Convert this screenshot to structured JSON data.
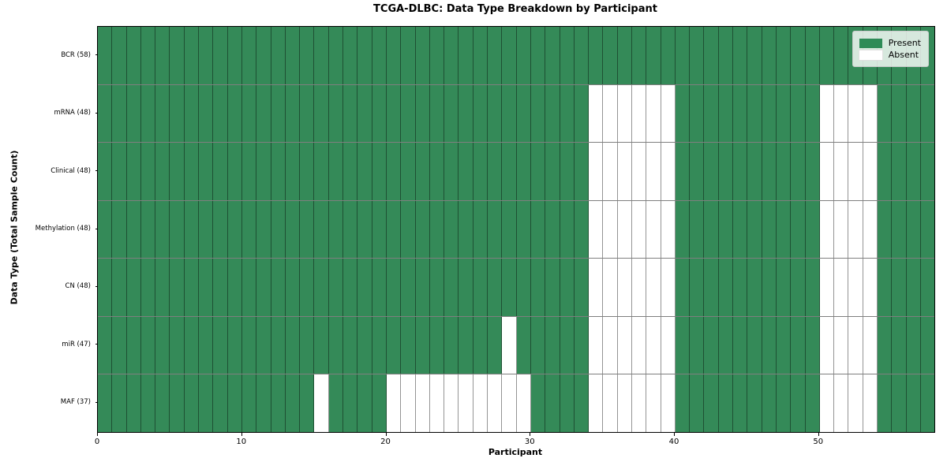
{
  "chart_data": {
    "type": "heatmap",
    "title": "TCGA-DLBC: Data Type Breakdown by Participant",
    "xlabel": "Participant",
    "ylabel": "Data Type (Total Sample Count)",
    "n_participants": 58,
    "x_range": [
      0,
      58
    ],
    "x_ticks": [
      0,
      10,
      20,
      30,
      40,
      50
    ],
    "grid": "cell-borders-on",
    "legend_position": "upper-right-inside",
    "legend": [
      {
        "label": "Present",
        "color": "#2E8B57"
      },
      {
        "label": "Absent",
        "color": "#FFFFFF"
      }
    ],
    "colors": {
      "present": "#348A58",
      "absent": "#FFFFFF"
    },
    "rows": [
      {
        "label": "BCR (58)",
        "data_type": "BCR",
        "present_count": 58,
        "absent_participants": []
      },
      {
        "label": "mRNA (48)",
        "data_type": "mRNA",
        "present_count": 48,
        "absent_participants": [
          34,
          35,
          36,
          37,
          38,
          39,
          50,
          51,
          52,
          53
        ]
      },
      {
        "label": "Clinical (48)",
        "data_type": "Clinical",
        "present_count": 48,
        "absent_participants": [
          34,
          35,
          36,
          37,
          38,
          39,
          50,
          51,
          52,
          53
        ]
      },
      {
        "label": "Methylation (48)",
        "data_type": "Methylation",
        "present_count": 48,
        "absent_participants": [
          34,
          35,
          36,
          37,
          38,
          39,
          50,
          51,
          52,
          53
        ]
      },
      {
        "label": "CN (48)",
        "data_type": "CN",
        "present_count": 48,
        "absent_participants": [
          34,
          35,
          36,
          37,
          38,
          39,
          50,
          51,
          52,
          53
        ]
      },
      {
        "label": "miR (47)",
        "data_type": "miR",
        "present_count": 47,
        "absent_participants": [
          28,
          34,
          35,
          36,
          37,
          38,
          39,
          50,
          51,
          52,
          53
        ]
      },
      {
        "label": "MAF (37)",
        "data_type": "MAF",
        "present_count": 37,
        "absent_participants": [
          15,
          20,
          21,
          22,
          23,
          24,
          25,
          26,
          27,
          28,
          29,
          34,
          35,
          36,
          37,
          38,
          39,
          50,
          51,
          52,
          53
        ]
      }
    ]
  }
}
